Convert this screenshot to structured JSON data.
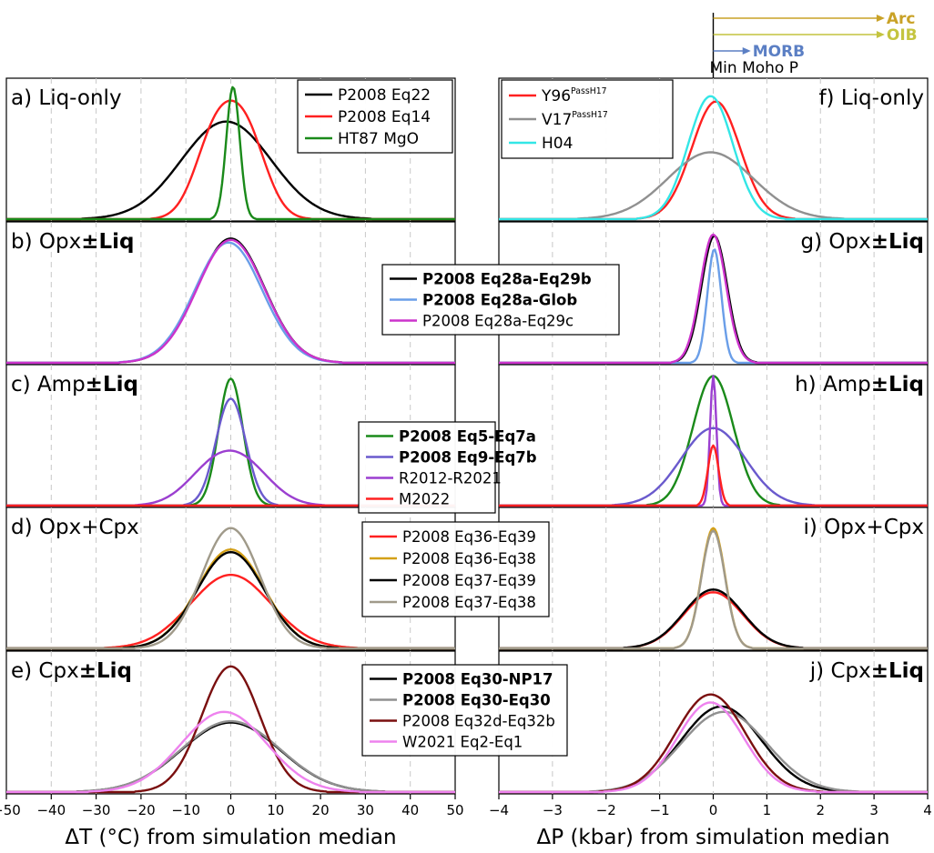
{
  "figure": {
    "xlabel_left": "ΔT (°C) from simulation median",
    "xlabel_right": "ΔP (kbar) from simulation median",
    "xticks_left": [
      "−50",
      "−40",
      "−30",
      "−20",
      "−10",
      "0",
      "10",
      "20",
      "30",
      "40",
      "50"
    ],
    "xticks_right": [
      "−4",
      "−3",
      "−2",
      "−1",
      "0",
      "1",
      "2",
      "3",
      "4"
    ],
    "arrows": [
      {
        "label": "Arc",
        "color": "#c9a227",
        "value": 3.2
      },
      {
        "label": "OIB",
        "color": "#c4c43f",
        "value": 3.2
      },
      {
        "label": "MORB",
        "color": "#5b7fc4",
        "value": 0.7
      }
    ],
    "arrow_baseline_label": "Min Moho P"
  },
  "chart_data": [
    {
      "id": "a",
      "type": "line",
      "label": "a) Liq-only",
      "label_main": "a) Liq-only",
      "label_bold": "",
      "side": "T",
      "xlim": [
        -50,
        50
      ],
      "series": [
        {
          "name": "P2008 Eq22",
          "color": "#000000",
          "mu": -1,
          "sd": 10,
          "amp": 0.73
        },
        {
          "name": "P2008 Eq14",
          "color": "#ff2020",
          "components": [
            [
              -3.5,
              4.5,
              0.6
            ],
            [
              3.5,
              4.5,
              0.6
            ]
          ]
        },
        {
          "name": "HT87 MgO",
          "color": "#1a8a1a",
          "mu": 0.5,
          "sd": 1.5,
          "amp": 0.99
        }
      ]
    },
    {
      "id": "b",
      "type": "line",
      "label": "b) Opx±Liq",
      "label_main": "b) Opx",
      "label_bold": "±Liq",
      "side": "T",
      "xlim": [
        -50,
        50
      ],
      "series": [
        {
          "name": "P2008 Eq28a-Eq29b",
          "color": "#000000",
          "bold": true,
          "mu": 0,
          "sd": 7.5,
          "amp": 0.93
        },
        {
          "name": "P2008 Eq28a-Glob",
          "color": "#6a9ee8",
          "bold": true,
          "mu": -0.5,
          "sd": 7.5,
          "amp": 0.9
        },
        {
          "name": "P2008 Eq28a-Eq29c",
          "color": "#cc33cc",
          "mu": 0,
          "sd": 7.5,
          "amp": 0.92
        }
      ]
    },
    {
      "id": "c",
      "type": "line",
      "label": "c) Amp±Liq",
      "label_main": "c) Amp",
      "label_bold": "±Liq",
      "side": "T",
      "xlim": [
        -50,
        50
      ],
      "series": [
        {
          "name": "P2008 Eq5-Eq7a",
          "color": "#1a8a1a",
          "bold": true,
          "mu": 0,
          "sd": 2.7,
          "amp": 0.95
        },
        {
          "name": "P2008 Eq9-Eq7b",
          "color": "#6a5acd",
          "bold": true,
          "mu": 0,
          "sd": 3.3,
          "amp": 0.8
        },
        {
          "name": "R2012-R2021",
          "color": "#9b3fd0",
          "components": [
            [
              -4,
              6,
              0.25
            ],
            [
              3.5,
              6,
              0.25
            ]
          ]
        },
        {
          "name": "M2022",
          "color": "#ff2020",
          "mu": 0,
          "sd": 1.2,
          "amp": 0.001
        }
      ]
    },
    {
      "id": "d",
      "type": "line",
      "label": "d) Opx+Cpx",
      "label_main": "d) Opx+Cpx",
      "label_bold": "",
      "side": "T",
      "xlim": [
        -50,
        50
      ],
      "series": [
        {
          "name": "P2008 Eq36-Eq39",
          "color": "#ff2020",
          "mu": 0,
          "sd": 9,
          "amp": 0.55
        },
        {
          "name": "P2008 Eq36-Eq38",
          "color": "#d4a017",
          "mu": 0,
          "sd": 7.5,
          "amp": 0.74
        },
        {
          "name": "P2008 Eq37-Eq39",
          "color": "#000000",
          "mu": 0,
          "sd": 7.5,
          "amp": 0.72
        },
        {
          "name": "P2008 Eq37-Eq38",
          "color": "#a09a8a",
          "mu": 0,
          "sd": 6.5,
          "amp": 0.9
        }
      ]
    },
    {
      "id": "e",
      "type": "line",
      "label": "e) Cpx±Liq",
      "label_main": "e) Cpx",
      "label_bold": "±Liq",
      "side": "T",
      "xlim": [
        -50,
        50
      ],
      "series": [
        {
          "name": "P2008 Eq30-NP17",
          "color": "#000000",
          "bold": true,
          "mu": 0,
          "sd": 11,
          "amp": 0.52
        },
        {
          "name": "P2008 Eq30-Eq30",
          "color": "#909090",
          "bold": true,
          "mu": 0,
          "sd": 11,
          "amp": 0.53
        },
        {
          "name": "P2008 Eq32d-Eq32b",
          "color": "#7a0f0f",
          "mu": 0,
          "sd": 6.5,
          "amp": 0.94
        },
        {
          "name": "W2021 Eq2-Eq1",
          "color": "#ee82ee",
          "mu": -1.5,
          "sd": 9.5,
          "amp": 0.6
        }
      ]
    },
    {
      "id": "f",
      "type": "line",
      "label": "f) Liq-only",
      "label_main": "f) Liq-only",
      "label_bold": "",
      "side": "P",
      "xlim": [
        -4,
        4
      ],
      "series": [
        {
          "name": "Y96",
          "sup": "PassH17",
          "color": "#ff2020",
          "mu": 0.05,
          "sd": 0.45,
          "amp": 0.88
        },
        {
          "name": "V17",
          "sup": "PassH17",
          "color": "#909090",
          "mu": -0.05,
          "sd": 0.8,
          "amp": 0.5
        },
        {
          "name": "H04",
          "color": "#33e6e6",
          "mu": -0.05,
          "sd": 0.42,
          "amp": 0.92
        }
      ]
    },
    {
      "id": "g",
      "type": "line",
      "label": "g) Opx±Liq",
      "label_main": "g) Opx",
      "label_bold": "±Liq",
      "side": "P",
      "xlim": [
        -4,
        4
      ],
      "series": [
        {
          "name": "P2008 Eq28a-Eq29b",
          "color": "#000000",
          "bold": true,
          "mu": 0.02,
          "sd": 0.24,
          "amp": 0.95
        },
        {
          "name": "P2008 Eq28a-Glob",
          "color": "#6a9ee8",
          "bold": true,
          "mu": 0.02,
          "sd": 0.13,
          "amp": 0.85
        },
        {
          "name": "P2008 Eq28a-Eq29c",
          "color": "#cc33cc",
          "mu": 0,
          "sd": 0.24,
          "amp": 0.96
        }
      ]
    },
    {
      "id": "h",
      "type": "line",
      "label": "h) Amp±Liq",
      "label_main": "h) Amp",
      "label_bold": "±Liq",
      "side": "P",
      "xlim": [
        -4,
        4
      ],
      "series": [
        {
          "name": "P2008 Eq5-Eq7a",
          "color": "#1a8a1a",
          "bold": true,
          "mu": 0,
          "sd": 0.38,
          "amp": 0.97
        },
        {
          "name": "P2008 Eq9-Eq7b",
          "color": "#6a5acd",
          "bold": true,
          "mu": 0,
          "sd": 0.6,
          "amp": 0.58
        },
        {
          "name": "R2012-R2021",
          "color": "#9b3fd0",
          "mu": 0,
          "sd": 0.06,
          "amp": 0.97
        },
        {
          "name": "M2022",
          "color": "#ff2020",
          "mu": 0,
          "sd": 0.1,
          "amp": 0.45
        }
      ]
    },
    {
      "id": "i",
      "type": "line",
      "label": "i) Opx+Cpx",
      "label_main": "i) Opx+Cpx",
      "label_bold": "",
      "side": "P",
      "xlim": [
        -4,
        4
      ],
      "series": [
        {
          "name": "P2008 Eq36-Eq39",
          "color": "#ff2020",
          "mu": 0,
          "sd": 0.55,
          "amp": 0.42
        },
        {
          "name": "P2008 Eq36-Eq38",
          "color": "#d4a017",
          "mu": 0,
          "sd": 0.22,
          "amp": 0.9
        },
        {
          "name": "P2008 Eq37-Eq39",
          "color": "#000000",
          "mu": 0,
          "sd": 0.55,
          "amp": 0.44
        },
        {
          "name": "P2008 Eq37-Eq38",
          "color": "#a09a8a",
          "mu": 0,
          "sd": 0.22,
          "amp": 0.88
        }
      ]
    },
    {
      "id": "j",
      "type": "line",
      "label": "j) Cpx±Liq",
      "label_main": "j) Cpx",
      "label_bold": "±Liq",
      "side": "P",
      "xlim": [
        -4,
        4
      ],
      "series": [
        {
          "name": "P2008 Eq30-NP17",
          "color": "#000000",
          "bold": true,
          "mu": 0.15,
          "sd": 0.75,
          "amp": 0.64
        },
        {
          "name": "P2008 Eq30-Eq30",
          "color": "#909090",
          "bold": true,
          "mu": 0.2,
          "sd": 0.8,
          "amp": 0.6
        },
        {
          "name": "P2008 Eq32d-Eq32b",
          "color": "#7a0f0f",
          "mu": -0.05,
          "sd": 0.65,
          "amp": 0.73
        },
        {
          "name": "W2021 Eq2-Eq1",
          "color": "#ee82ee",
          "mu": -0.05,
          "sd": 0.62,
          "amp": 0.67
        }
      ]
    }
  ]
}
